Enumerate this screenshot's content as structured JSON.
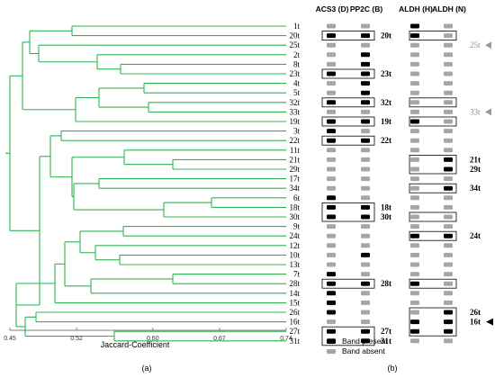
{
  "dendrogram": {
    "samples": [
      "1t",
      "20t",
      "25t",
      "2t",
      "8t",
      "23t",
      "4t",
      "5t",
      "32t",
      "33t",
      "19t",
      "3t",
      "22t",
      "11t",
      "21t",
      "29t",
      "17t",
      "34t",
      "6t",
      "18t",
      "30t",
      "9t",
      "24t",
      "12t",
      "10t",
      "13t",
      "7t",
      "28t",
      "14t",
      "15t",
      "26t",
      "16t",
      "27t",
      "31t"
    ],
    "axis_ticks": [
      "0.45",
      "0.52",
      "0.60",
      "0.67",
      "0.74"
    ],
    "axis_range": [
      0.45,
      0.74
    ],
    "xlabel": "Jaccard-Coefficient",
    "line_color": "#2fb350",
    "panel_label": "(a)"
  },
  "bands": {
    "columns": [
      {
        "name": "ACS3 (D)"
      },
      {
        "name": "PP2C (B)"
      },
      {
        "name": "ALDH (H)"
      },
      {
        "name": "ALDH (N)"
      }
    ],
    "present_color": "#000000",
    "absent_color": "#a6a6a6",
    "legend_present": "Band present",
    "legend_absent": "Band absent",
    "panel_label": "(b)",
    "highlight_labels": {
      "20t": "20t",
      "23t": "23t",
      "32t": "32t",
      "19t": "19t",
      "22t": "22t",
      "18t": "18t",
      "30t": "30t",
      "28t": "28t",
      "27t": "27t",
      "31t": "31t",
      "21t": "21t",
      "29t": "29t",
      "34t": "34t",
      "24t": "24t",
      "26t": "26t",
      "16t": "16t",
      "25t": "25t",
      "33t": "33t"
    }
  }
}
